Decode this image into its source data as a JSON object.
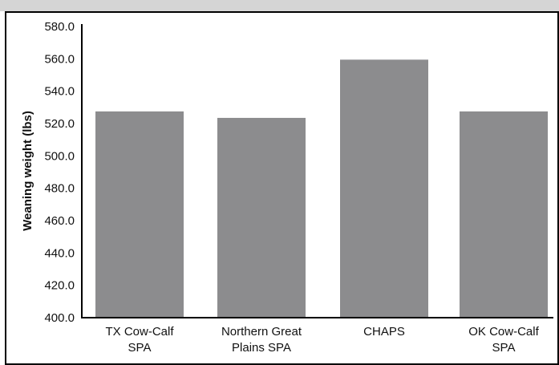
{
  "chart_data": {
    "type": "bar",
    "title": "",
    "xlabel": "",
    "ylabel": "Weaning weight (lbs)",
    "categories": [
      [
        "TX Cow-Calf",
        "SPA"
      ],
      [
        "Northern Great",
        "Plains SPA"
      ],
      [
        "CHAPS"
      ],
      [
        "OK Cow-Calf",
        "SPA"
      ]
    ],
    "values": [
      527,
      523,
      559,
      527
    ],
    "ylim": [
      400,
      580
    ],
    "yticks": [
      "400.0",
      "420.0",
      "440.0",
      "460.0",
      "480.0",
      "500.0",
      "520.0",
      "540.0",
      "560.0",
      "580.0"
    ],
    "ytick_values": [
      400,
      420,
      440,
      460,
      480,
      500,
      520,
      540,
      560,
      580
    ],
    "grid": false,
    "legend": "none",
    "bar_color": "#8c8c8e",
    "axis_color": "#000000"
  }
}
